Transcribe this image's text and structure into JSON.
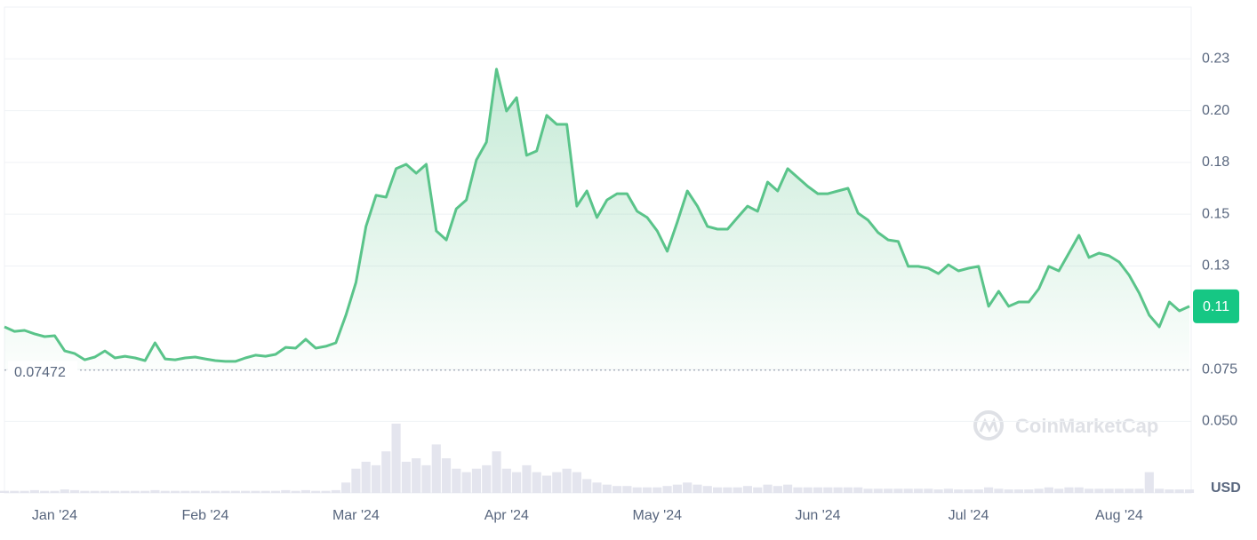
{
  "chart_data": {
    "type": "line",
    "watermark": "CoinMarketCap",
    "currency": "USD",
    "color": "#5ac48a",
    "volume_color": "#e4e5ee",
    "grid": true,
    "ylim": [
      0.0154,
      0.25
    ],
    "yticks": [
      {
        "value": 0.05,
        "label": "0.050"
      },
      {
        "value": 0.075,
        "label": "0.075"
      },
      {
        "value": 0.125,
        "label": "0.13"
      },
      {
        "value": 0.15,
        "label": "0.15"
      },
      {
        "value": 0.175,
        "label": "0.18"
      },
      {
        "value": 0.2,
        "label": "0.20"
      },
      {
        "value": 0.225,
        "label": "0.23"
      }
    ],
    "baseline": 0.07472,
    "current_price": {
      "value": 0.1055,
      "label": "0.11"
    },
    "categories": [
      null,
      null,
      null,
      null,
      null,
      "Jan '24",
      null,
      null,
      null,
      null,
      null,
      null,
      null,
      null,
      null,
      null,
      null,
      null,
      null,
      null,
      "Feb '24",
      null,
      null,
      null,
      null,
      null,
      null,
      null,
      null,
      null,
      null,
      null,
      null,
      null,
      null,
      "Mar '24",
      null,
      null,
      null,
      null,
      null,
      null,
      null,
      null,
      null,
      null,
      null,
      null,
      null,
      null,
      "Apr '24",
      null,
      null,
      null,
      null,
      null,
      null,
      null,
      null,
      null,
      null,
      null,
      null,
      null,
      null,
      "May '24",
      null,
      null,
      null,
      null,
      null,
      null,
      null,
      null,
      null,
      null,
      null,
      null,
      null,
      null,
      null,
      "Jun '24",
      null,
      null,
      null,
      null,
      null,
      null,
      null,
      null,
      null,
      null,
      null,
      null,
      null,
      null,
      "Jul '24",
      null,
      null,
      null,
      null,
      null,
      null,
      null,
      null,
      null,
      null,
      null,
      null,
      null,
      null,
      "Aug '24",
      null,
      null,
      null,
      null,
      null,
      null,
      null
    ],
    "values": [
      0.0956,
      0.0934,
      0.0939,
      0.0922,
      0.0909,
      0.0913,
      0.084,
      0.0827,
      0.0797,
      0.081,
      0.084,
      0.0806,
      0.0814,
      0.0806,
      0.0793,
      0.0879,
      0.0801,
      0.0797,
      0.0806,
      0.081,
      0.0801,
      0.0793,
      0.0789,
      0.0789,
      0.0806,
      0.0819,
      0.0814,
      0.0823,
      0.0857,
      0.0853,
      0.0896,
      0.0853,
      0.0862,
      0.0879,
      0.1012,
      0.117,
      0.1441,
      0.1591,
      0.1582,
      0.172,
      0.1741,
      0.1698,
      0.1741,
      0.1419,
      0.1376,
      0.1526,
      0.1569,
      0.1762,
      0.1848,
      0.22,
      0.1998,
      0.2063,
      0.1784,
      0.1805,
      0.1977,
      0.1934,
      0.1934,
      0.1539,
      0.1612,
      0.1484,
      0.1569,
      0.1599,
      0.1599,
      0.1514,
      0.1484,
      0.1419,
      0.1321,
      0.1462,
      0.1612,
      0.1539,
      0.1441,
      0.1428,
      0.1428,
      0.1484,
      0.1539,
      0.1514,
      0.1655,
      0.1612,
      0.172,
      0.1677,
      0.1634,
      0.1599,
      0.1599,
      0.1612,
      0.1625,
      0.1505,
      0.1471,
      0.1411,
      0.1376,
      0.1368,
      0.1248,
      0.1248,
      0.1239,
      0.1213,
      0.1256,
      0.1226,
      0.1239,
      0.1248,
      0.1055,
      0.1128,
      0.1055,
      0.1076,
      0.1076,
      0.114,
      0.1248,
      0.1226,
      0.1312,
      0.1398,
      0.1291,
      0.1312,
      0.1299,
      0.1269,
      0.1205,
      0.1119,
      0.1012,
      0.0956,
      0.1076,
      0.1033,
      0.1055
    ],
    "volume": [
      3,
      3,
      3,
      4,
      3,
      3,
      5,
      4,
      3,
      3,
      3,
      3,
      3,
      3,
      3,
      4,
      3,
      3,
      3,
      3,
      3,
      3,
      3,
      3,
      3,
      3,
      3,
      3,
      4,
      3,
      4,
      3,
      3,
      4,
      15,
      35,
      45,
      40,
      60,
      100,
      45,
      50,
      40,
      70,
      50,
      35,
      30,
      35,
      40,
      60,
      35,
      30,
      40,
      30,
      25,
      30,
      35,
      30,
      20,
      15,
      12,
      10,
      10,
      8,
      8,
      8,
      10,
      12,
      15,
      12,
      10,
      8,
      8,
      8,
      10,
      8,
      12,
      10,
      12,
      8,
      8,
      8,
      8,
      8,
      8,
      8,
      6,
      6,
      6,
      6,
      6,
      6,
      6,
      5,
      6,
      5,
      5,
      5,
      8,
      6,
      5,
      5,
      5,
      6,
      8,
      6,
      8,
      8,
      6,
      6,
      6,
      6,
      6,
      6,
      30,
      6,
      5,
      5,
      5
    ]
  }
}
